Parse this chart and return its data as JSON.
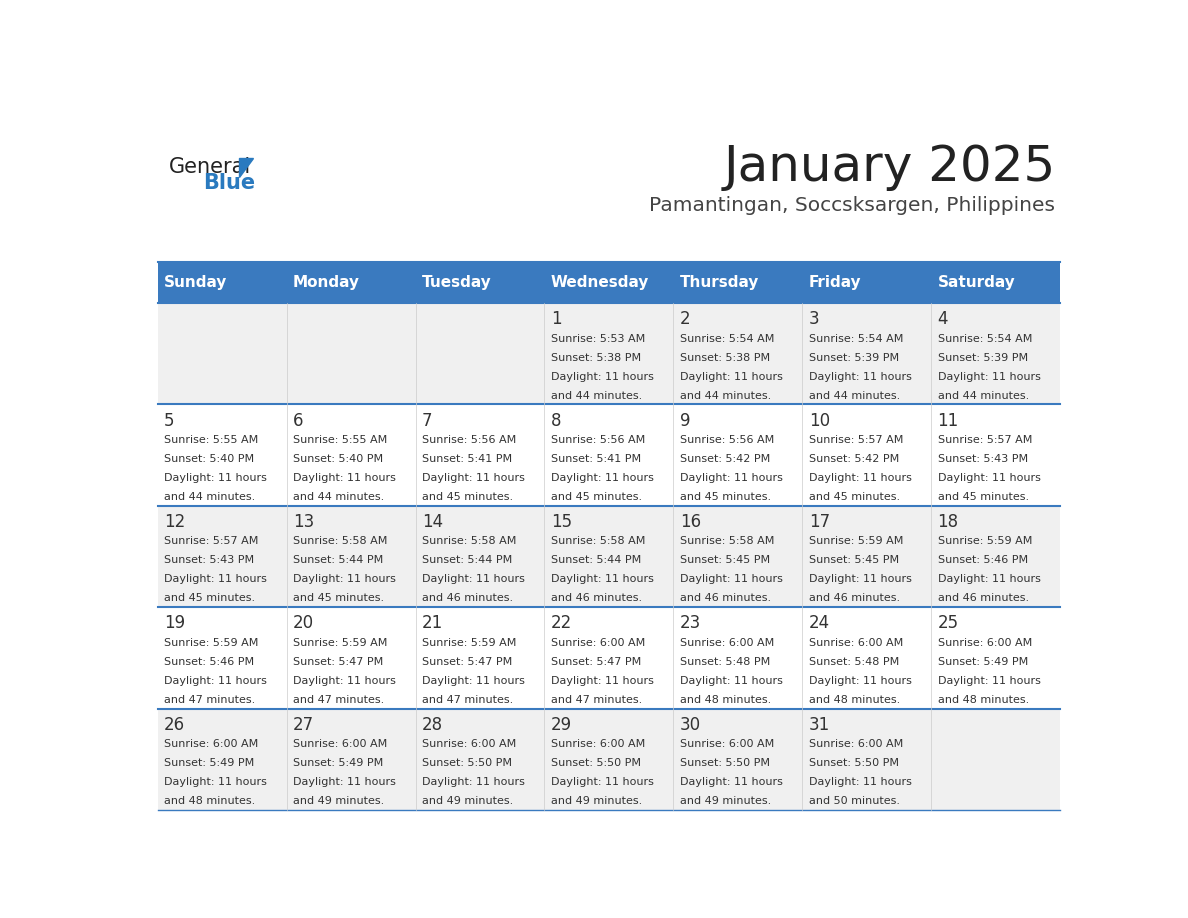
{
  "title": "January 2025",
  "subtitle": "Pamantingan, Soccsksargen, Philippines",
  "days_of_week": [
    "Sunday",
    "Monday",
    "Tuesday",
    "Wednesday",
    "Thursday",
    "Friday",
    "Saturday"
  ],
  "header_bg": "#3a7abf",
  "header_text_color": "#ffffff",
  "cell_bg_odd": "#f0f0f0",
  "cell_bg_even": "#ffffff",
  "cell_text_color": "#333333",
  "divider_color": "#3a7abf",
  "title_color": "#222222",
  "subtitle_color": "#444444",
  "logo_general_color": "#222222",
  "logo_blue_color": "#2a7abf",
  "calendar_data": [
    {
      "day": 1,
      "col": 3,
      "row": 0,
      "sunrise": "5:53 AM",
      "sunset": "5:38 PM",
      "daylight_hours": 11,
      "daylight_minutes": 44
    },
    {
      "day": 2,
      "col": 4,
      "row": 0,
      "sunrise": "5:54 AM",
      "sunset": "5:38 PM",
      "daylight_hours": 11,
      "daylight_minutes": 44
    },
    {
      "day": 3,
      "col": 5,
      "row": 0,
      "sunrise": "5:54 AM",
      "sunset": "5:39 PM",
      "daylight_hours": 11,
      "daylight_minutes": 44
    },
    {
      "day": 4,
      "col": 6,
      "row": 0,
      "sunrise": "5:54 AM",
      "sunset": "5:39 PM",
      "daylight_hours": 11,
      "daylight_minutes": 44
    },
    {
      "day": 5,
      "col": 0,
      "row": 1,
      "sunrise": "5:55 AM",
      "sunset": "5:40 PM",
      "daylight_hours": 11,
      "daylight_minutes": 44
    },
    {
      "day": 6,
      "col": 1,
      "row": 1,
      "sunrise": "5:55 AM",
      "sunset": "5:40 PM",
      "daylight_hours": 11,
      "daylight_minutes": 44
    },
    {
      "day": 7,
      "col": 2,
      "row": 1,
      "sunrise": "5:56 AM",
      "sunset": "5:41 PM",
      "daylight_hours": 11,
      "daylight_minutes": 45
    },
    {
      "day": 8,
      "col": 3,
      "row": 1,
      "sunrise": "5:56 AM",
      "sunset": "5:41 PM",
      "daylight_hours": 11,
      "daylight_minutes": 45
    },
    {
      "day": 9,
      "col": 4,
      "row": 1,
      "sunrise": "5:56 AM",
      "sunset": "5:42 PM",
      "daylight_hours": 11,
      "daylight_minutes": 45
    },
    {
      "day": 10,
      "col": 5,
      "row": 1,
      "sunrise": "5:57 AM",
      "sunset": "5:42 PM",
      "daylight_hours": 11,
      "daylight_minutes": 45
    },
    {
      "day": 11,
      "col": 6,
      "row": 1,
      "sunrise": "5:57 AM",
      "sunset": "5:43 PM",
      "daylight_hours": 11,
      "daylight_minutes": 45
    },
    {
      "day": 12,
      "col": 0,
      "row": 2,
      "sunrise": "5:57 AM",
      "sunset": "5:43 PM",
      "daylight_hours": 11,
      "daylight_minutes": 45
    },
    {
      "day": 13,
      "col": 1,
      "row": 2,
      "sunrise": "5:58 AM",
      "sunset": "5:44 PM",
      "daylight_hours": 11,
      "daylight_minutes": 45
    },
    {
      "day": 14,
      "col": 2,
      "row": 2,
      "sunrise": "5:58 AM",
      "sunset": "5:44 PM",
      "daylight_hours": 11,
      "daylight_minutes": 46
    },
    {
      "day": 15,
      "col": 3,
      "row": 2,
      "sunrise": "5:58 AM",
      "sunset": "5:44 PM",
      "daylight_hours": 11,
      "daylight_minutes": 46
    },
    {
      "day": 16,
      "col": 4,
      "row": 2,
      "sunrise": "5:58 AM",
      "sunset": "5:45 PM",
      "daylight_hours": 11,
      "daylight_minutes": 46
    },
    {
      "day": 17,
      "col": 5,
      "row": 2,
      "sunrise": "5:59 AM",
      "sunset": "5:45 PM",
      "daylight_hours": 11,
      "daylight_minutes": 46
    },
    {
      "day": 18,
      "col": 6,
      "row": 2,
      "sunrise": "5:59 AM",
      "sunset": "5:46 PM",
      "daylight_hours": 11,
      "daylight_minutes": 46
    },
    {
      "day": 19,
      "col": 0,
      "row": 3,
      "sunrise": "5:59 AM",
      "sunset": "5:46 PM",
      "daylight_hours": 11,
      "daylight_minutes": 47
    },
    {
      "day": 20,
      "col": 1,
      "row": 3,
      "sunrise": "5:59 AM",
      "sunset": "5:47 PM",
      "daylight_hours": 11,
      "daylight_minutes": 47
    },
    {
      "day": 21,
      "col": 2,
      "row": 3,
      "sunrise": "5:59 AM",
      "sunset": "5:47 PM",
      "daylight_hours": 11,
      "daylight_minutes": 47
    },
    {
      "day": 22,
      "col": 3,
      "row": 3,
      "sunrise": "6:00 AM",
      "sunset": "5:47 PM",
      "daylight_hours": 11,
      "daylight_minutes": 47
    },
    {
      "day": 23,
      "col": 4,
      "row": 3,
      "sunrise": "6:00 AM",
      "sunset": "5:48 PM",
      "daylight_hours": 11,
      "daylight_minutes": 48
    },
    {
      "day": 24,
      "col": 5,
      "row": 3,
      "sunrise": "6:00 AM",
      "sunset": "5:48 PM",
      "daylight_hours": 11,
      "daylight_minutes": 48
    },
    {
      "day": 25,
      "col": 6,
      "row": 3,
      "sunrise": "6:00 AM",
      "sunset": "5:49 PM",
      "daylight_hours": 11,
      "daylight_minutes": 48
    },
    {
      "day": 26,
      "col": 0,
      "row": 4,
      "sunrise": "6:00 AM",
      "sunset": "5:49 PM",
      "daylight_hours": 11,
      "daylight_minutes": 48
    },
    {
      "day": 27,
      "col": 1,
      "row": 4,
      "sunrise": "6:00 AM",
      "sunset": "5:49 PM",
      "daylight_hours": 11,
      "daylight_minutes": 49
    },
    {
      "day": 28,
      "col": 2,
      "row": 4,
      "sunrise": "6:00 AM",
      "sunset": "5:50 PM",
      "daylight_hours": 11,
      "daylight_minutes": 49
    },
    {
      "day": 29,
      "col": 3,
      "row": 4,
      "sunrise": "6:00 AM",
      "sunset": "5:50 PM",
      "daylight_hours": 11,
      "daylight_minutes": 49
    },
    {
      "day": 30,
      "col": 4,
      "row": 4,
      "sunrise": "6:00 AM",
      "sunset": "5:50 PM",
      "daylight_hours": 11,
      "daylight_minutes": 49
    },
    {
      "day": 31,
      "col": 5,
      "row": 4,
      "sunrise": "6:00 AM",
      "sunset": "5:50 PM",
      "daylight_hours": 11,
      "daylight_minutes": 50
    }
  ]
}
